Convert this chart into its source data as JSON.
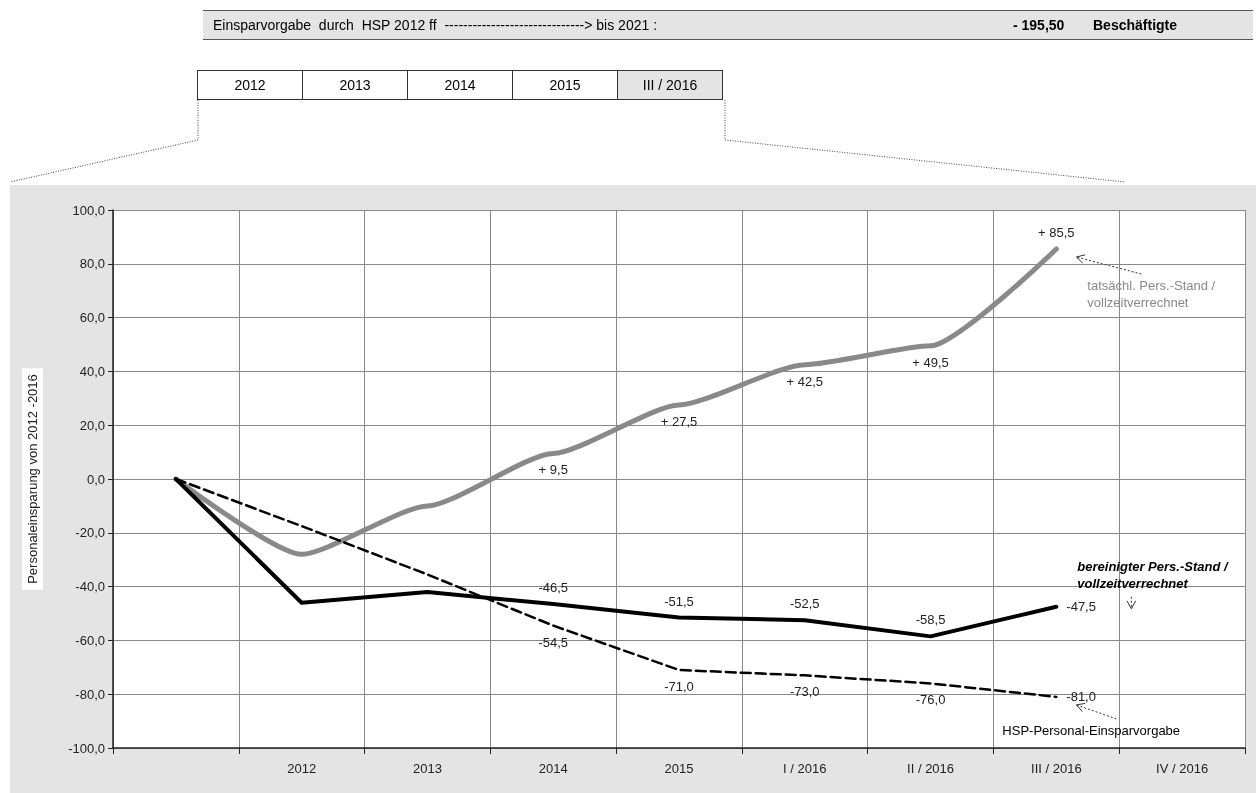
{
  "chart_data": {
    "type": "line",
    "annotations": [
      "Einsparvorgabe  durch  HSP 2012 ff  ------------------------------> bis 2021 :",
      "- 195,50",
      "Beschäftigte",
      "2012",
      "2013",
      "2014",
      "2015",
      "III / 2016"
    ],
    "ylabel": "Personaleinsparung von 2012 -2016",
    "categories": [
      null,
      "2012",
      "2013",
      "2014",
      "2015",
      "I / 2016",
      "II / 2016",
      "III / 2016",
      "IV / 2016"
    ],
    "ylim": [
      -100,
      100
    ],
    "yticks": [
      {
        "value": -100,
        "label": "-100,0"
      },
      {
        "value": -80,
        "label": "-80,0"
      },
      {
        "value": -60,
        "label": "-60,0"
      },
      {
        "value": -40,
        "label": "-40,0"
      },
      {
        "value": -20,
        "label": "-20,0"
      },
      {
        "value": 0,
        "label": "0,0"
      },
      {
        "value": 20,
        "label": "20,0"
      },
      {
        "value": 40,
        "label": "40,0"
      },
      {
        "value": 60,
        "label": "60,0"
      },
      {
        "value": 80,
        "label": "80,0"
      },
      {
        "value": 100,
        "label": "100,0"
      }
    ],
    "grid": true,
    "legend": false,
    "marker": "none",
    "series": [
      {
        "name": "tatsächl. Pers.-Stand / vollzeitverrechnet",
        "color": "#898989",
        "line_style": "solid",
        "values": [
          0,
          -28,
          -10,
          9.5,
          27.5,
          42.5,
          49.5,
          85.5,
          null
        ],
        "value_labels": [
          null,
          null,
          null,
          "+ 9,5",
          "+ 27,5",
          "+ 42,5",
          "+ 49,5",
          "+ 85,5",
          null
        ]
      },
      {
        "name": "bereinigter Pers.-Stand / vollzeitverrechnet",
        "color": "#000000",
        "line_style": "solid",
        "values": [
          0,
          -46,
          -42,
          -46.5,
          -51.5,
          -52.5,
          -58.5,
          -47.5,
          null
        ],
        "value_labels": [
          null,
          null,
          null,
          "-46,5",
          "-51,5",
          "-52,5",
          "-58,5",
          "-47,5",
          null
        ]
      },
      {
        "name": "HSP-Personal-Einsparvorgabe",
        "color": "#000000",
        "line_style": "dashed",
        "values": [
          0,
          -17.5,
          -35.5,
          -54.5,
          -71,
          -73,
          -76,
          -81,
          null
        ],
        "value_labels": [
          null,
          null,
          null,
          "-54,5",
          "-71,0",
          "-73,0",
          "-76,0",
          "-81,0",
          null
        ]
      }
    ]
  }
}
